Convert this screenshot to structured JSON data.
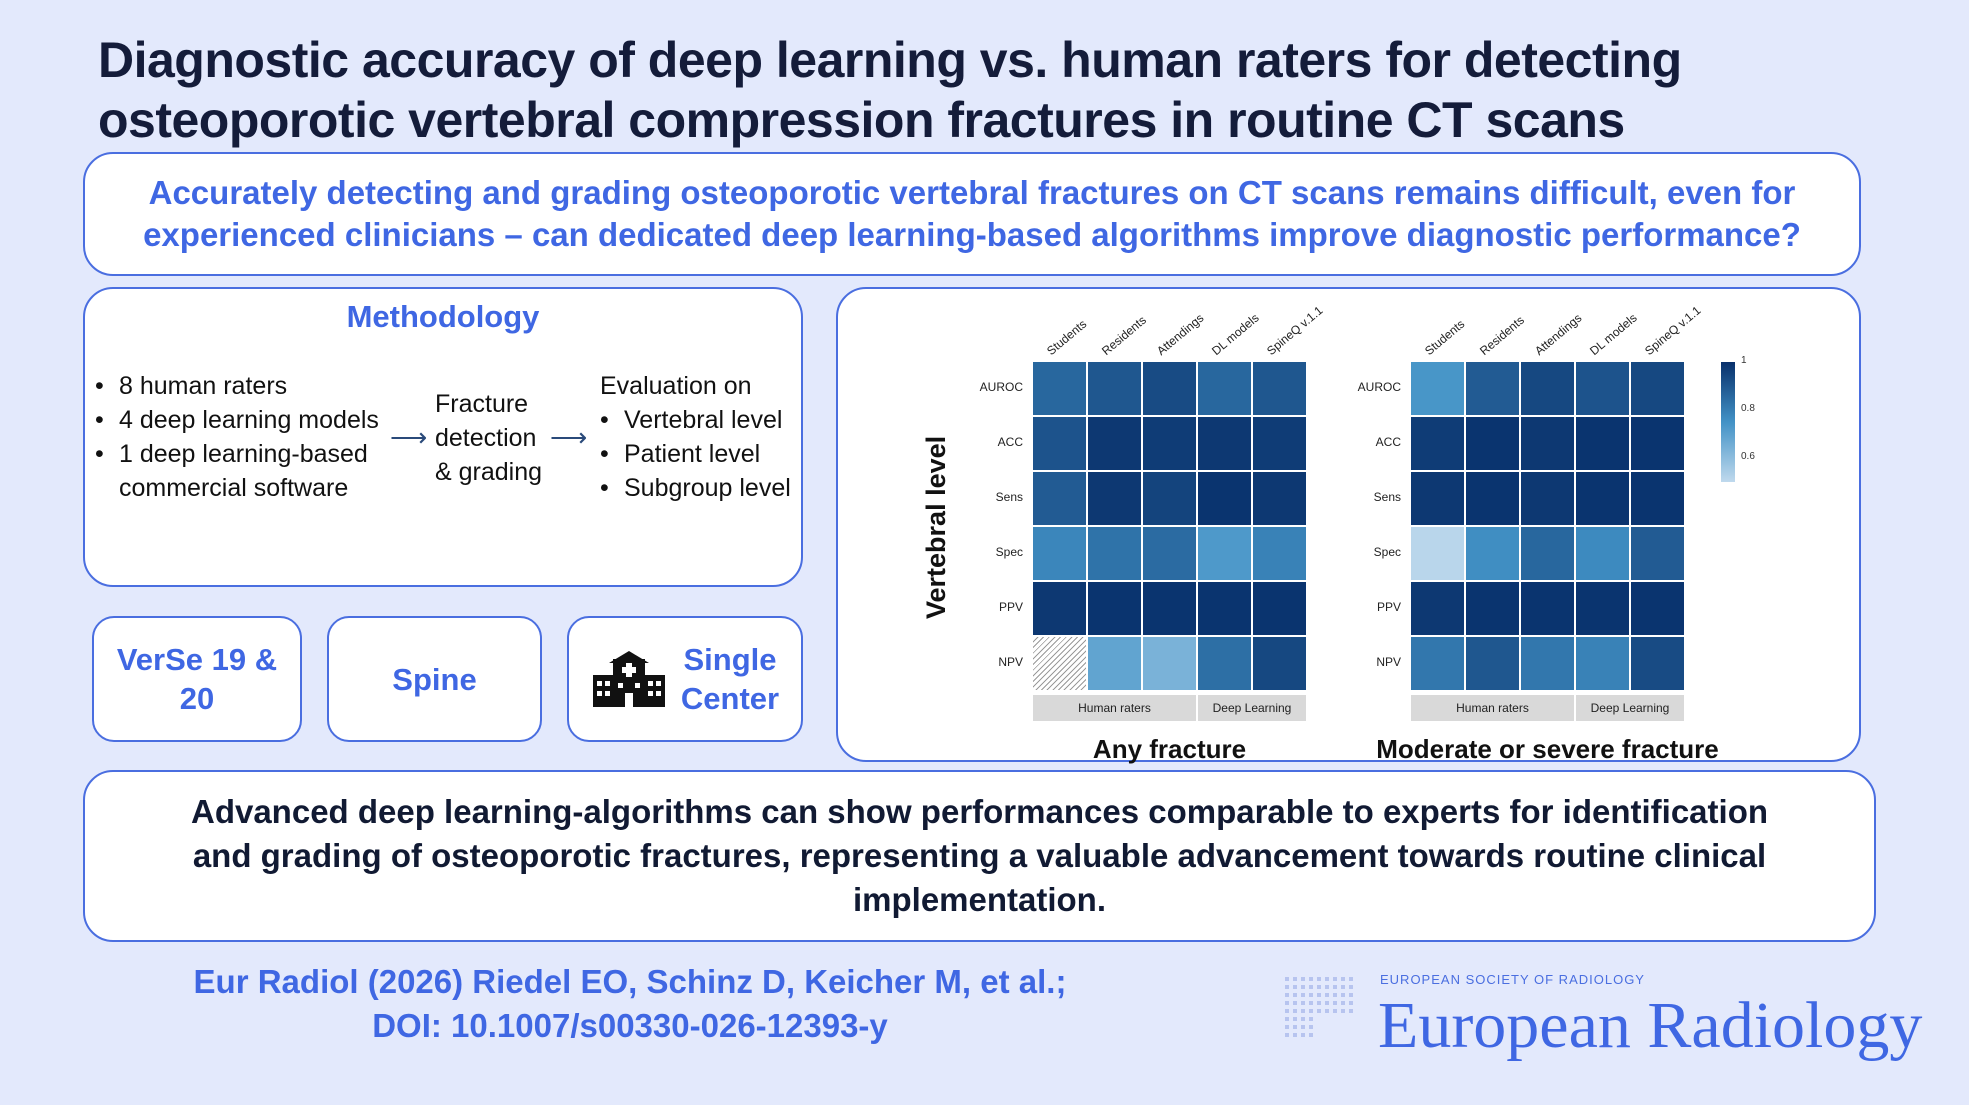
{
  "title": {
    "line1": "Diagnostic accuracy of deep learning vs. human raters for detecting",
    "line2": "osteoporotic vertebral compression fractures in routine CT scans"
  },
  "question": {
    "line1": "Accurately detecting and grading osteoporotic vertebral fractures on CT scans remains difficult, even for",
    "line2": "experienced clinicians – can dedicated deep learning-based algorithms improve diagnostic performance?"
  },
  "methodology": {
    "title": "Methodology",
    "raters": [
      "8 human raters",
      "4 deep learning models",
      "1 deep learning-based",
      "commercial software"
    ],
    "process": [
      "Fracture",
      "detection",
      "& grading"
    ],
    "evaluation_title": "Evaluation on",
    "evaluation": [
      "Vertebral level",
      "Patient level",
      "Subgroup level"
    ]
  },
  "badges": {
    "dataset": [
      "VerSe 19 &",
      "20"
    ],
    "region": "Spine",
    "center": [
      "Single",
      "Center"
    ]
  },
  "chart_data": [
    {
      "type": "heatmap",
      "title": "Any fracture",
      "ylabel": "Vertebral level",
      "columns": [
        "Students",
        "Residents",
        "Attendings",
        "DL models",
        "SpineQ v.1.1"
      ],
      "rows": [
        "AUROC",
        "ACC",
        "Sens",
        "Spec",
        "PPV",
        "NPV"
      ],
      "groups": [
        {
          "label": "Human raters",
          "span": 3
        },
        {
          "label": "Deep Learning",
          "span": 2
        }
      ],
      "values": [
        [
          0.86,
          0.9,
          0.93,
          0.86,
          0.9
        ],
        [
          0.91,
          0.98,
          0.97,
          0.98,
          0.97
        ],
        [
          0.89,
          0.98,
          0.95,
          0.99,
          0.98
        ],
        [
          0.78,
          0.83,
          0.85,
          0.73,
          0.79
        ],
        [
          0.98,
          0.99,
          0.99,
          0.99,
          0.99
        ],
        [
          null,
          0.7,
          0.66,
          0.84,
          0.94
        ]
      ],
      "colorbar": {
        "min": 0.5,
        "max": 1,
        "ticks": [
          "1",
          "0.8",
          "0.6"
        ]
      }
    },
    {
      "type": "heatmap",
      "title": "Moderate or severe fracture",
      "columns": [
        "Students",
        "Residents",
        "Attendings",
        "DL models",
        "SpineQ v.1.1"
      ],
      "rows": [
        "AUROC",
        "ACC",
        "Sens",
        "Spec",
        "PPV",
        "NPV"
      ],
      "groups": [
        {
          "label": "Human raters",
          "span": 3
        },
        {
          "label": "Deep Learning",
          "span": 2
        }
      ],
      "values": [
        [
          0.74,
          0.89,
          0.94,
          0.91,
          0.94
        ],
        [
          0.97,
          0.99,
          0.98,
          0.99,
          0.99
        ],
        [
          0.98,
          0.99,
          0.98,
          0.99,
          0.99
        ],
        [
          0.56,
          0.76,
          0.86,
          0.77,
          0.89
        ],
        [
          0.98,
          0.99,
          0.99,
          0.99,
          0.99
        ],
        [
          0.82,
          0.9,
          0.82,
          0.79,
          0.93
        ]
      ],
      "colorbar": {
        "min": 0.5,
        "max": 1,
        "ticks": [
          "1",
          "0.8",
          "0.6"
        ]
      }
    }
  ],
  "conclusion": {
    "line1": "Advanced deep learning-algorithms can show performances comparable to experts for identification",
    "line2": "and grading of osteoporotic fractures, representing a valuable advancement towards routine clinical",
    "line3": "implementation."
  },
  "citation": {
    "line1": "Eur Radiol (2026) Riedel EO, Schinz D, Keicher M, et al.;",
    "line2": "DOI: 10.1007/s00330-026-12393-y"
  },
  "logo": {
    "society": "EUROPEAN SOCIETY OF RADIOLOGY",
    "journal": "European Radiology"
  }
}
